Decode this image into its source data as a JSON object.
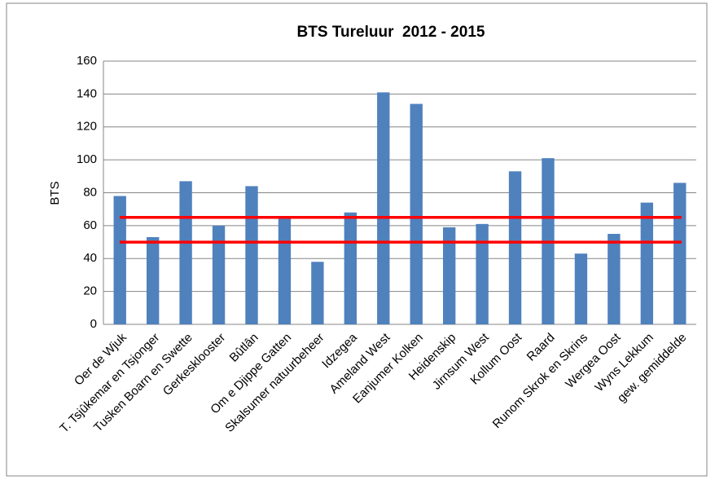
{
  "chart_data": {
    "type": "bar",
    "title": "BTS Tureluur  2012 - 2015",
    "y_label": "BTS",
    "categories": [
      "Oer de Wjuk",
      "T. Tsjûkemar en Tsjonger",
      "Tusken Boarn en Swette",
      "Gerkesklooster",
      "Bûtlân",
      "Om e Djippe Gatten",
      "Skalsumer natuurbeheer",
      "Idzegea",
      "Ameland West",
      "Eanjumer Kolken",
      "Heidenskip",
      "Jirnsum West",
      "Kollum Oost",
      "Raard",
      "Runom Skrok en Skrins",
      "Wergea Oost",
      "Wyns Lekkum",
      "gew. gemiddelde"
    ],
    "values": [
      78,
      53,
      87,
      60,
      84,
      65,
      38,
      68,
      141,
      134,
      59,
      61,
      93,
      101,
      43,
      55,
      74,
      86
    ],
    "color": "#4f81bd",
    "ylim": [
      0,
      160
    ],
    "yticks": [
      0,
      20,
      40,
      60,
      80,
      100,
      120,
      140,
      160
    ],
    "grid": true,
    "reference_lines": [
      {
        "value": 65,
        "color": "#ff0000"
      },
      {
        "value": 50,
        "color": "#ff0000"
      }
    ]
  }
}
